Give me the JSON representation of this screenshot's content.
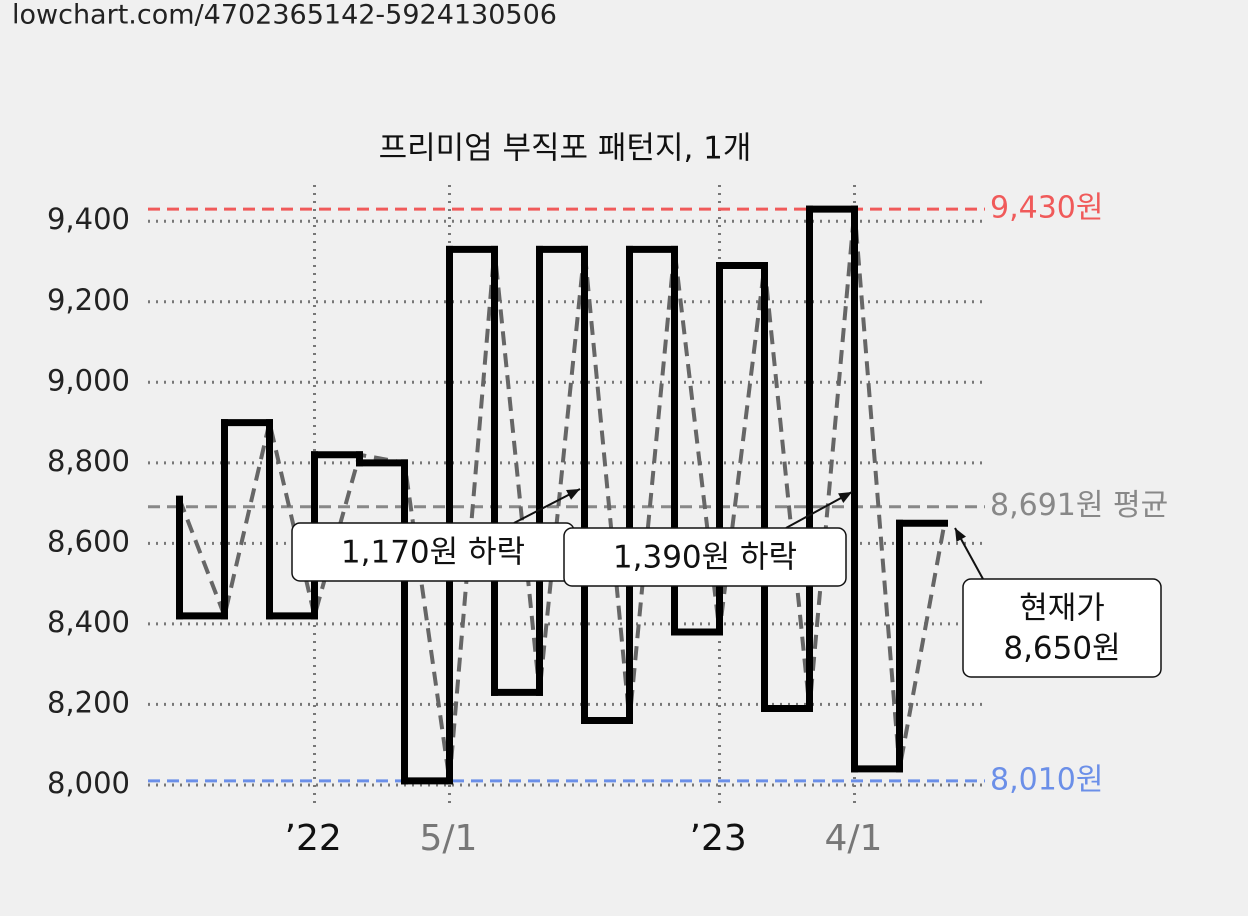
{
  "header": {
    "url": "lowchart.com/4702365142-5924130506"
  },
  "chart_data": {
    "type": "step",
    "title": "프리미엄 부직포 패턴지, 1개",
    "categories": [
      null,
      null,
      null,
      null,
      null,
      null,
      null,
      null,
      null,
      null,
      null,
      null,
      null,
      null,
      null,
      null,
      null,
      null
    ],
    "series": [
      {
        "color": "#000000",
        "values": [
          8710,
          8420,
          8900,
          8420,
          8820,
          8800,
          8010,
          9330,
          8230,
          9330,
          8160,
          9330,
          8380,
          9290,
          8190,
          9430,
          8040,
          8650
        ]
      }
    ],
    "trend_color": "#666666",
    "xlim": [
      -0.7,
      17.9
    ],
    "xticks": [
      {
        "value": 3,
        "label": "’22",
        "color": "#111111"
      },
      {
        "value": 6,
        "label": "5/1",
        "color": "#777777"
      },
      {
        "value": 12,
        "label": "’23",
        "color": "#111111"
      },
      {
        "value": 15,
        "label": "4/1",
        "color": "#777777"
      }
    ],
    "ylim": [
      7985,
      9490
    ],
    "yticks": [
      {
        "value": 8000,
        "label": "8,000"
      },
      {
        "value": 8200,
        "label": "8,200"
      },
      {
        "value": 8400,
        "label": "8,400"
      },
      {
        "value": 8600,
        "label": "8,600"
      },
      {
        "value": 8800,
        "label": "8,800"
      },
      {
        "value": 9000,
        "label": "9,000"
      },
      {
        "value": 9200,
        "label": "9,200"
      },
      {
        "value": 9400,
        "label": "9,400"
      }
    ],
    "grid": true,
    "reference_lines": [
      {
        "value": 9430,
        "label": "9,430원",
        "color": "#f05a5a"
      },
      {
        "value": 8691,
        "label": "8,691원 평균",
        "color": "#888888"
      },
      {
        "value": 8010,
        "label": "8,010원",
        "color": "#6b8fe8"
      }
    ],
    "annotations": [
      {
        "lines": [
          "1,170원 하락"
        ]
      },
      {
        "lines": [
          "1,390원 하락"
        ]
      },
      {
        "lines": [
          "현재가",
          "8,650원"
        ]
      }
    ]
  }
}
